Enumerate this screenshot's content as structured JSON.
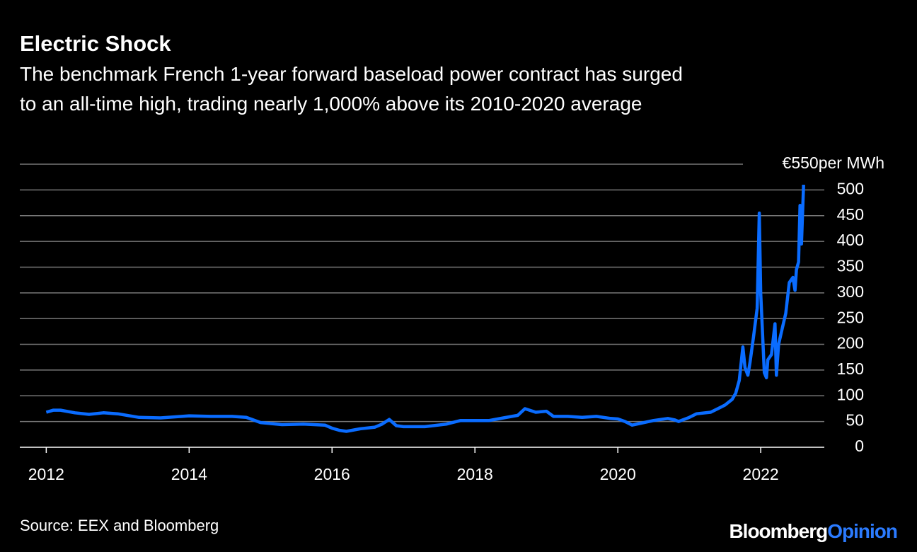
{
  "chart_data": {
    "type": "line",
    "title": "Electric Shock",
    "subtitle": [
      "The benchmark French 1-year forward baseload power contract has surged",
      "to an all-time high, trading nearly 1,000% above its 2010-2020 average"
    ],
    "source": "Source: EEX and Bloomberg",
    "logo": {
      "brand": "Bloomberg",
      "product": "Opinion"
    },
    "xlim": [
      2011.63,
      2022.89
    ],
    "xticks": [
      2012,
      2014,
      2016,
      2018,
      2020,
      2022
    ],
    "ylim": [
      0,
      550
    ],
    "yticks": [
      0,
      50,
      100,
      150,
      200,
      250,
      300,
      350,
      400,
      450,
      500,
      {
        "value": 550,
        "label": "€550per MWh"
      }
    ],
    "grid": true,
    "series": [
      {
        "color": "#0a6cff",
        "x": [
          2012.0,
          2012.1,
          2012.2,
          2012.4,
          2012.6,
          2012.8,
          2013.0,
          2013.3,
          2013.6,
          2013.9,
          2014.0,
          2014.3,
          2014.6,
          2014.8,
          2015.0,
          2015.3,
          2015.6,
          2015.9,
          2016.0,
          2016.1,
          2016.2,
          2016.4,
          2016.6,
          2016.7,
          2016.8,
          2016.9,
          2017.0,
          2017.3,
          2017.6,
          2017.8,
          2018.0,
          2018.2,
          2018.4,
          2018.6,
          2018.7,
          2018.85,
          2019.0,
          2019.1,
          2019.3,
          2019.5,
          2019.7,
          2019.9,
          2020.0,
          2020.1,
          2020.2,
          2020.3,
          2020.5,
          2020.7,
          2020.8,
          2020.85,
          2021.0,
          2021.1,
          2021.3,
          2021.4,
          2021.5,
          2021.6,
          2021.65,
          2021.7,
          2021.75,
          2021.78,
          2021.82,
          2021.85,
          2021.9,
          2021.95,
          2021.98,
          2022.0,
          2022.05,
          2022.08,
          2022.1,
          2022.15,
          2022.2,
          2022.22,
          2022.25,
          2022.3,
          2022.35,
          2022.4,
          2022.45,
          2022.48,
          2022.5,
          2022.53,
          2022.55,
          2022.57,
          2022.6
        ],
        "values": [
          68,
          72,
          72,
          67,
          64,
          67,
          65,
          58,
          57,
          60,
          61,
          60,
          60,
          58,
          48,
          44,
          45,
          43,
          37,
          33,
          31,
          36,
          39,
          45,
          54,
          42,
          40,
          40,
          45,
          52,
          52,
          52,
          57,
          62,
          75,
          68,
          70,
          60,
          60,
          58,
          60,
          56,
          55,
          50,
          43,
          46,
          52,
          56,
          53,
          50,
          58,
          65,
          68,
          75,
          82,
          93,
          105,
          130,
          195,
          155,
          140,
          165,
          215,
          270,
          455,
          300,
          145,
          135,
          170,
          180,
          240,
          140,
          200,
          230,
          260,
          320,
          330,
          305,
          345,
          360,
          470,
          395,
          510
        ]
      }
    ]
  }
}
